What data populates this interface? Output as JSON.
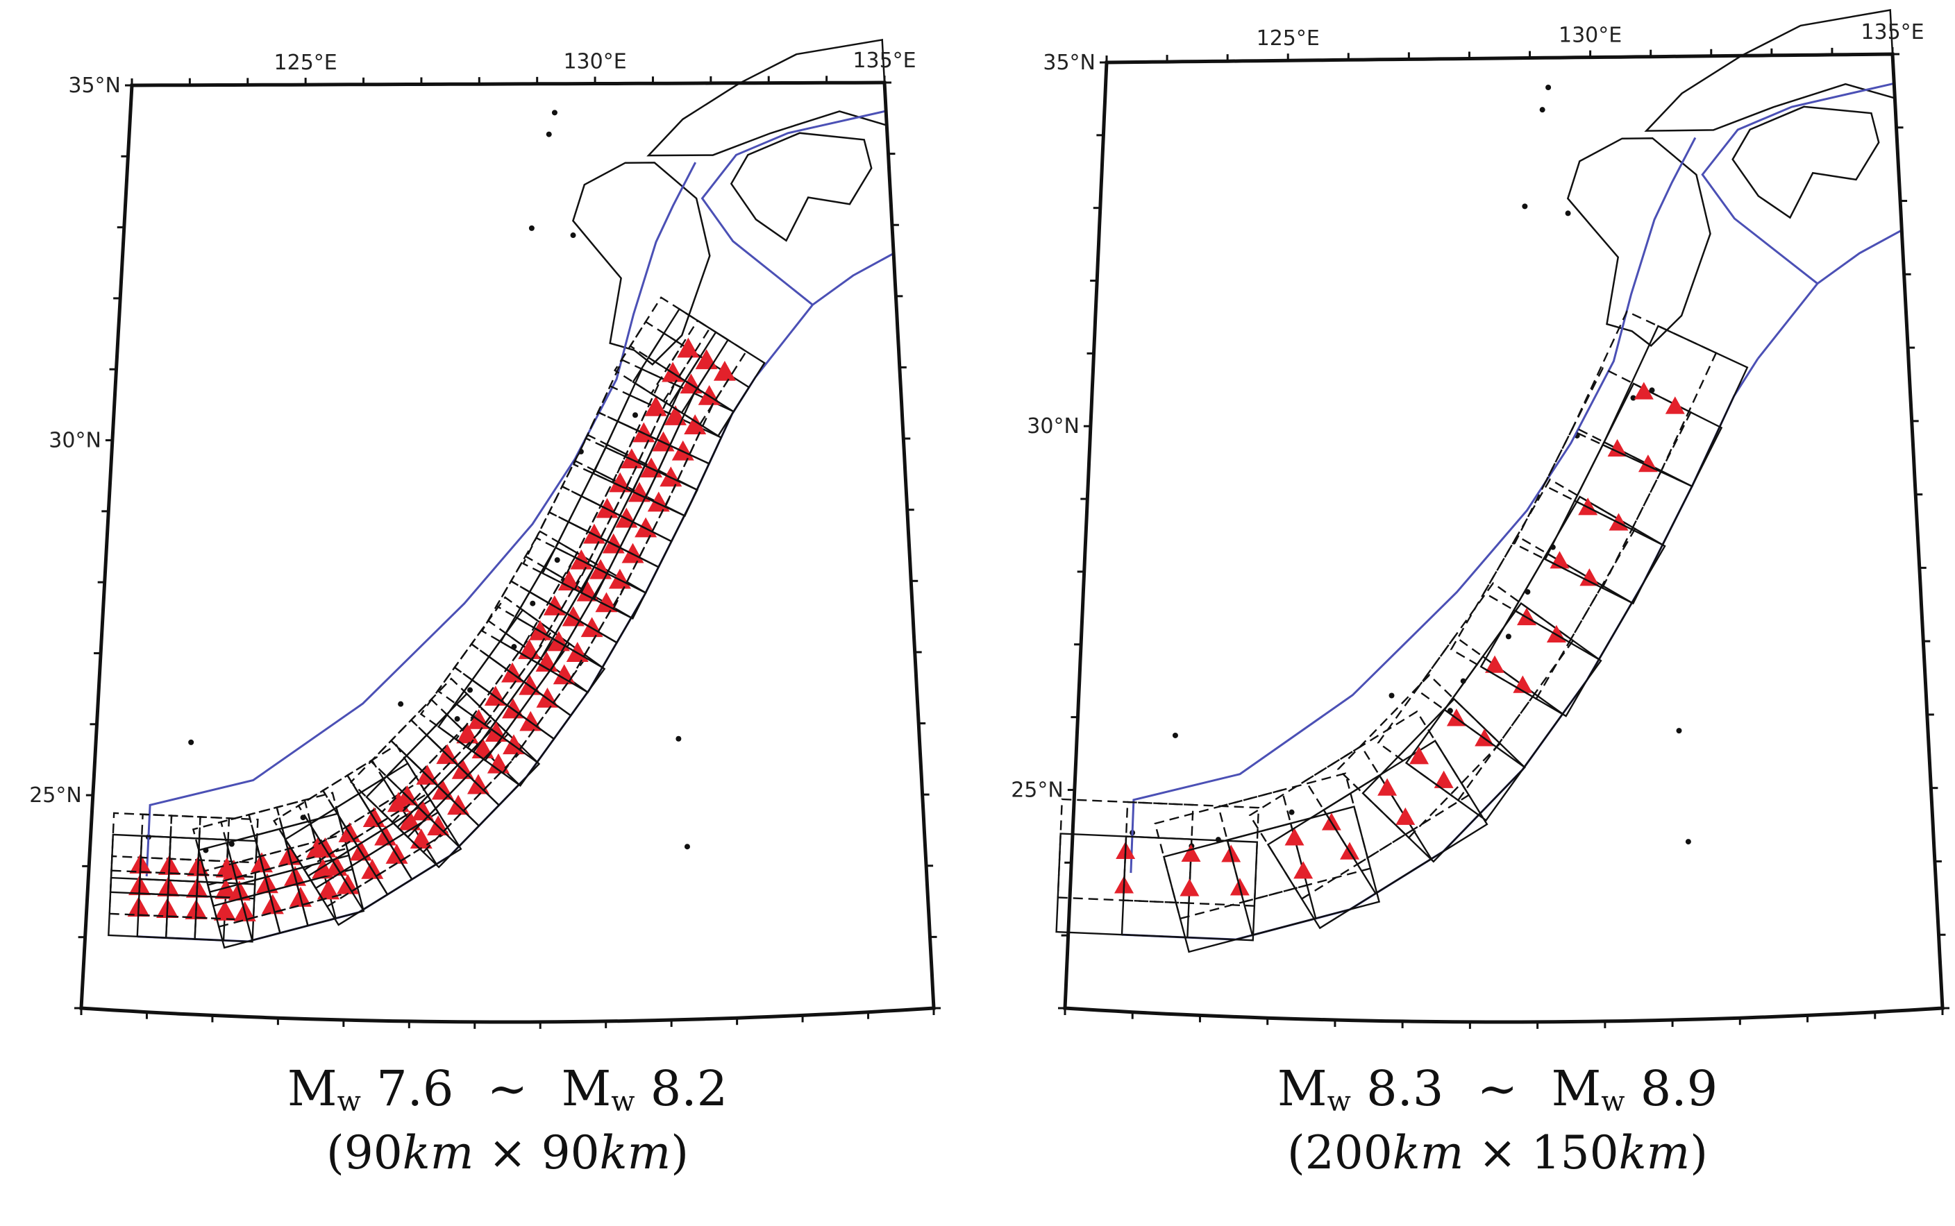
{
  "colors": {
    "frame": "#111111",
    "plate_boundary": "#4b50b5",
    "fault_patch": "#111111",
    "epicenter": "#e3212b",
    "coast": "#111111"
  },
  "maps": [
    {
      "lat_labels": [
        "35°N",
        "30°N",
        "25°N"
      ],
      "lon_labels": [
        "125°E",
        "130°E",
        "135°E"
      ],
      "caption": {
        "mw_symbol": "M",
        "mw_sub": "w",
        "mw_from": "7.6",
        "tilde": "~",
        "mw_to": "8.2",
        "open": "(",
        "dim1": "90",
        "unit": "km",
        "times": "×",
        "dim2": "90",
        "close": ")"
      }
    },
    {
      "lat_labels": [
        "35°N",
        "30°N",
        "25°N"
      ],
      "lon_labels": [
        "125°E",
        "130°E",
        "135°E"
      ],
      "caption": {
        "mw_symbol": "M",
        "mw_sub": "w",
        "mw_from": "8.3",
        "tilde": "~",
        "mw_to": "8.9",
        "open": "(",
        "dim1": "200",
        "unit": "km",
        "times": "×",
        "dim2": "150",
        "close": ")"
      }
    }
  ]
}
